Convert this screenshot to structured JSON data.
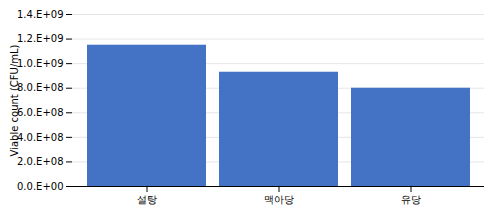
{
  "chart_data": {
    "type": "bar",
    "ylabel": "Viable count (CFU/mL)",
    "categories": [
      "설탕",
      "맥아당",
      "유당"
    ],
    "values": [
      1150000000,
      930000000,
      800000000
    ],
    "color": "#4472C4",
    "ylim": [
      0,
      1400000000
    ],
    "yticks": [
      {
        "value": 0,
        "label": "0.0.E+00"
      },
      {
        "value": 200000000,
        "label": "2.0.E+08"
      },
      {
        "value": 400000000,
        "label": "4.0.E+08"
      },
      {
        "value": 600000000,
        "label": "6.0.E+08"
      },
      {
        "value": 800000000,
        "label": "8.0.E+08"
      },
      {
        "value": 1000000000,
        "label": "1.0.E+09"
      },
      {
        "value": 1200000000,
        "label": "1.2.E+09"
      },
      {
        "value": 1400000000,
        "label": "1.4.E+09"
      }
    ],
    "grid": true
  }
}
